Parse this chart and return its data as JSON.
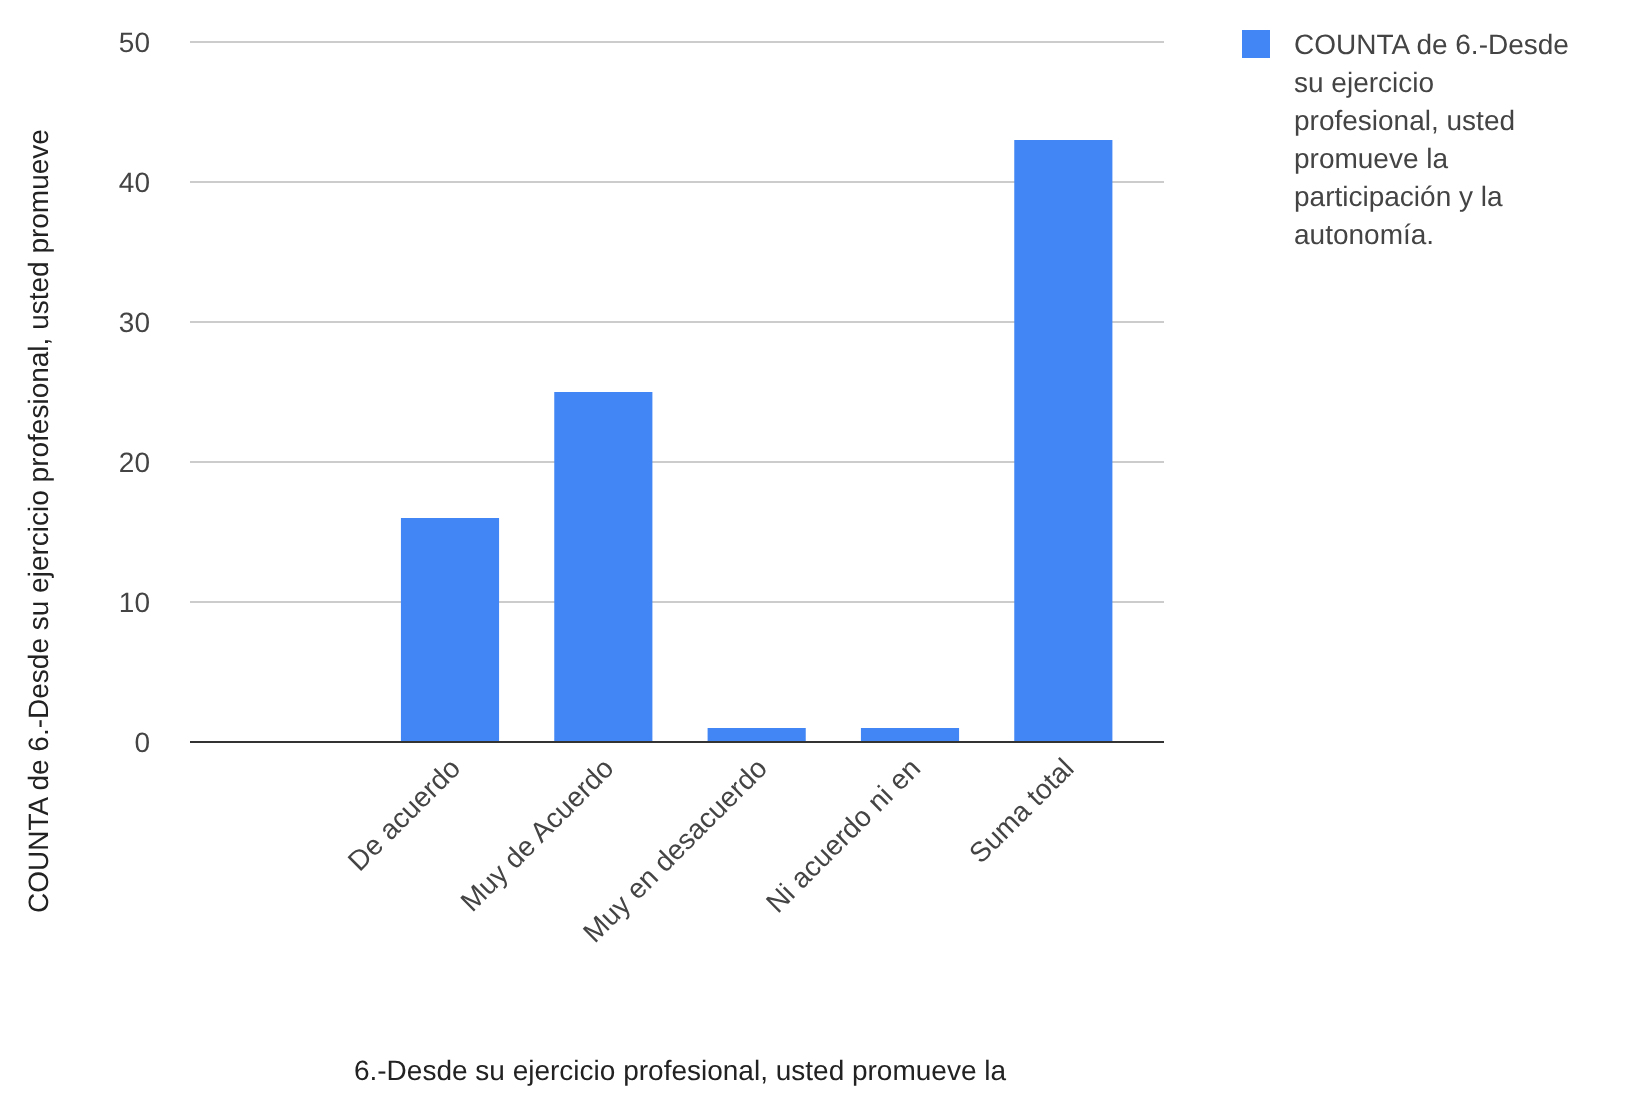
{
  "chart_data": {
    "type": "bar",
    "xlabel": "6.-Desde su ejercicio profesional, usted promueve la",
    "ylabel": "COUNTA de 6.-Desde su ejercicio profesional, usted promueve",
    "categories": [
      null,
      "De acuerdo",
      "Muy de Acuerdo",
      "Muy en desacuerdo",
      "Ni acuerdo ni en",
      "Suma total"
    ],
    "series": [
      {
        "name": "COUNTA de 6.-Desde su ejercicio profesional, usted promueve la participación y la autonomía.",
        "color": "#4285f4",
        "values": [
          null,
          16,
          25,
          1,
          1,
          43
        ]
      }
    ],
    "ylim": [
      0,
      50
    ],
    "yticks": [
      0,
      10,
      20,
      30,
      40,
      50
    ],
    "grid": "y",
    "legend": "top right"
  }
}
